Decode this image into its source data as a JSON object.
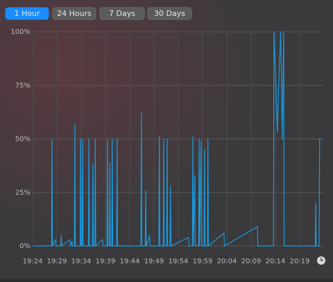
{
  "tabs": {
    "labels": [
      "1 Hour",
      "24 Hours",
      "7 Days",
      "30 Days"
    ],
    "selected": 0
  },
  "chart_data": {
    "type": "line",
    "color": "#1b9ae0",
    "grid": true,
    "xlim": [
      1164,
      1224
    ],
    "xticks": [
      {
        "value": 1164,
        "label": "19:24"
      },
      {
        "value": 1169,
        "label": "19:29"
      },
      {
        "value": 1174,
        "label": "19:34"
      },
      {
        "value": 1179,
        "label": "19:39"
      },
      {
        "value": 1184,
        "label": "19:44"
      },
      {
        "value": 1189,
        "label": "19:49"
      },
      {
        "value": 1194,
        "label": "19:54"
      },
      {
        "value": 1199,
        "label": "19:59"
      },
      {
        "value": 1204,
        "label": "20:04"
      },
      {
        "value": 1209,
        "label": "20:09"
      },
      {
        "value": 1214,
        "label": "20:14"
      },
      {
        "value": 1219,
        "label": "20:19"
      }
    ],
    "ylim": [
      0,
      100
    ],
    "yticks": [
      {
        "value": 0,
        "label": "0%"
      },
      {
        "value": 25,
        "label": "25%"
      },
      {
        "value": 50,
        "label": "50%"
      },
      {
        "value": 75,
        "label": "75%"
      },
      {
        "value": 100,
        "label": "100%"
      }
    ],
    "x": [
      1164,
      1167.9,
      1168.0,
      1168.1,
      1168.7,
      1168.8,
      1169.8,
      1169.9,
      1170.0,
      1171.7,
      1171.8,
      1172.1,
      1172.2,
      1172.6,
      1172.7,
      1172.8,
      1173.8,
      1173.9,
      1174.0,
      1174.2,
      1174.3,
      1174.4,
      1175.5,
      1175.6,
      1175.7,
      1176.3,
      1176.4,
      1176.5,
      1176.8,
      1176.9,
      1177.0,
      1178.4,
      1178.5,
      1179.3,
      1179.4,
      1179.5,
      1179.8,
      1179.9,
      1180.0,
      1180.3,
      1180.4,
      1180.5,
      1181.3,
      1181.4,
      1181.5,
      1186.3,
      1186.4,
      1186.5,
      1187.2,
      1187.3,
      1187.4,
      1188.1,
      1188.2,
      1190.0,
      1190.1,
      1190.2,
      1190.9,
      1191.0,
      1191.1,
      1191.6,
      1191.7,
      1191.8,
      1192.3,
      1192.4,
      1192.5,
      1196.1,
      1196.2,
      1196.9,
      1197.0,
      1197.1,
      1197.4,
      1197.5,
      1198.2,
      1198.3,
      1198.4,
      1198.7,
      1198.8,
      1199.3,
      1199.4,
      1199.5,
      1200.0,
      1200.1,
      1200.2,
      1203.4,
      1203.5,
      1210.3,
      1210.4,
      1213.6,
      1213.7,
      1214.1,
      1214.4,
      1214.7,
      1215.1,
      1215.4,
      1215.7,
      1215.8,
      1222.2,
      1222.3,
      1222.4,
      1223.0,
      1223.1,
      1223.3
    ],
    "values": [
      0,
      0,
      50,
      0,
      3,
      0,
      0,
      5,
      0,
      3,
      0,
      2,
      0,
      0,
      57,
      0,
      0,
      50,
      0,
      0,
      50,
      0,
      0,
      50,
      0,
      0,
      38,
      0,
      0,
      50,
      0,
      3,
      0,
      0,
      50,
      0,
      0,
      39,
      0,
      0,
      50,
      0,
      0,
      50,
      0,
      0,
      62,
      0,
      0,
      26,
      0,
      5,
      0,
      0,
      51,
      0,
      0,
      50,
      0,
      0,
      50,
      0,
      0,
      28,
      0,
      4,
      0,
      0,
      51,
      0,
      33,
      0,
      0,
      50,
      0,
      49,
      0,
      0,
      45,
      0,
      0,
      50,
      0,
      6,
      0,
      9,
      0,
      0,
      100,
      75,
      53,
      77,
      100,
      50,
      100,
      0,
      0,
      20,
      0,
      0,
      50,
      50
    ]
  }
}
